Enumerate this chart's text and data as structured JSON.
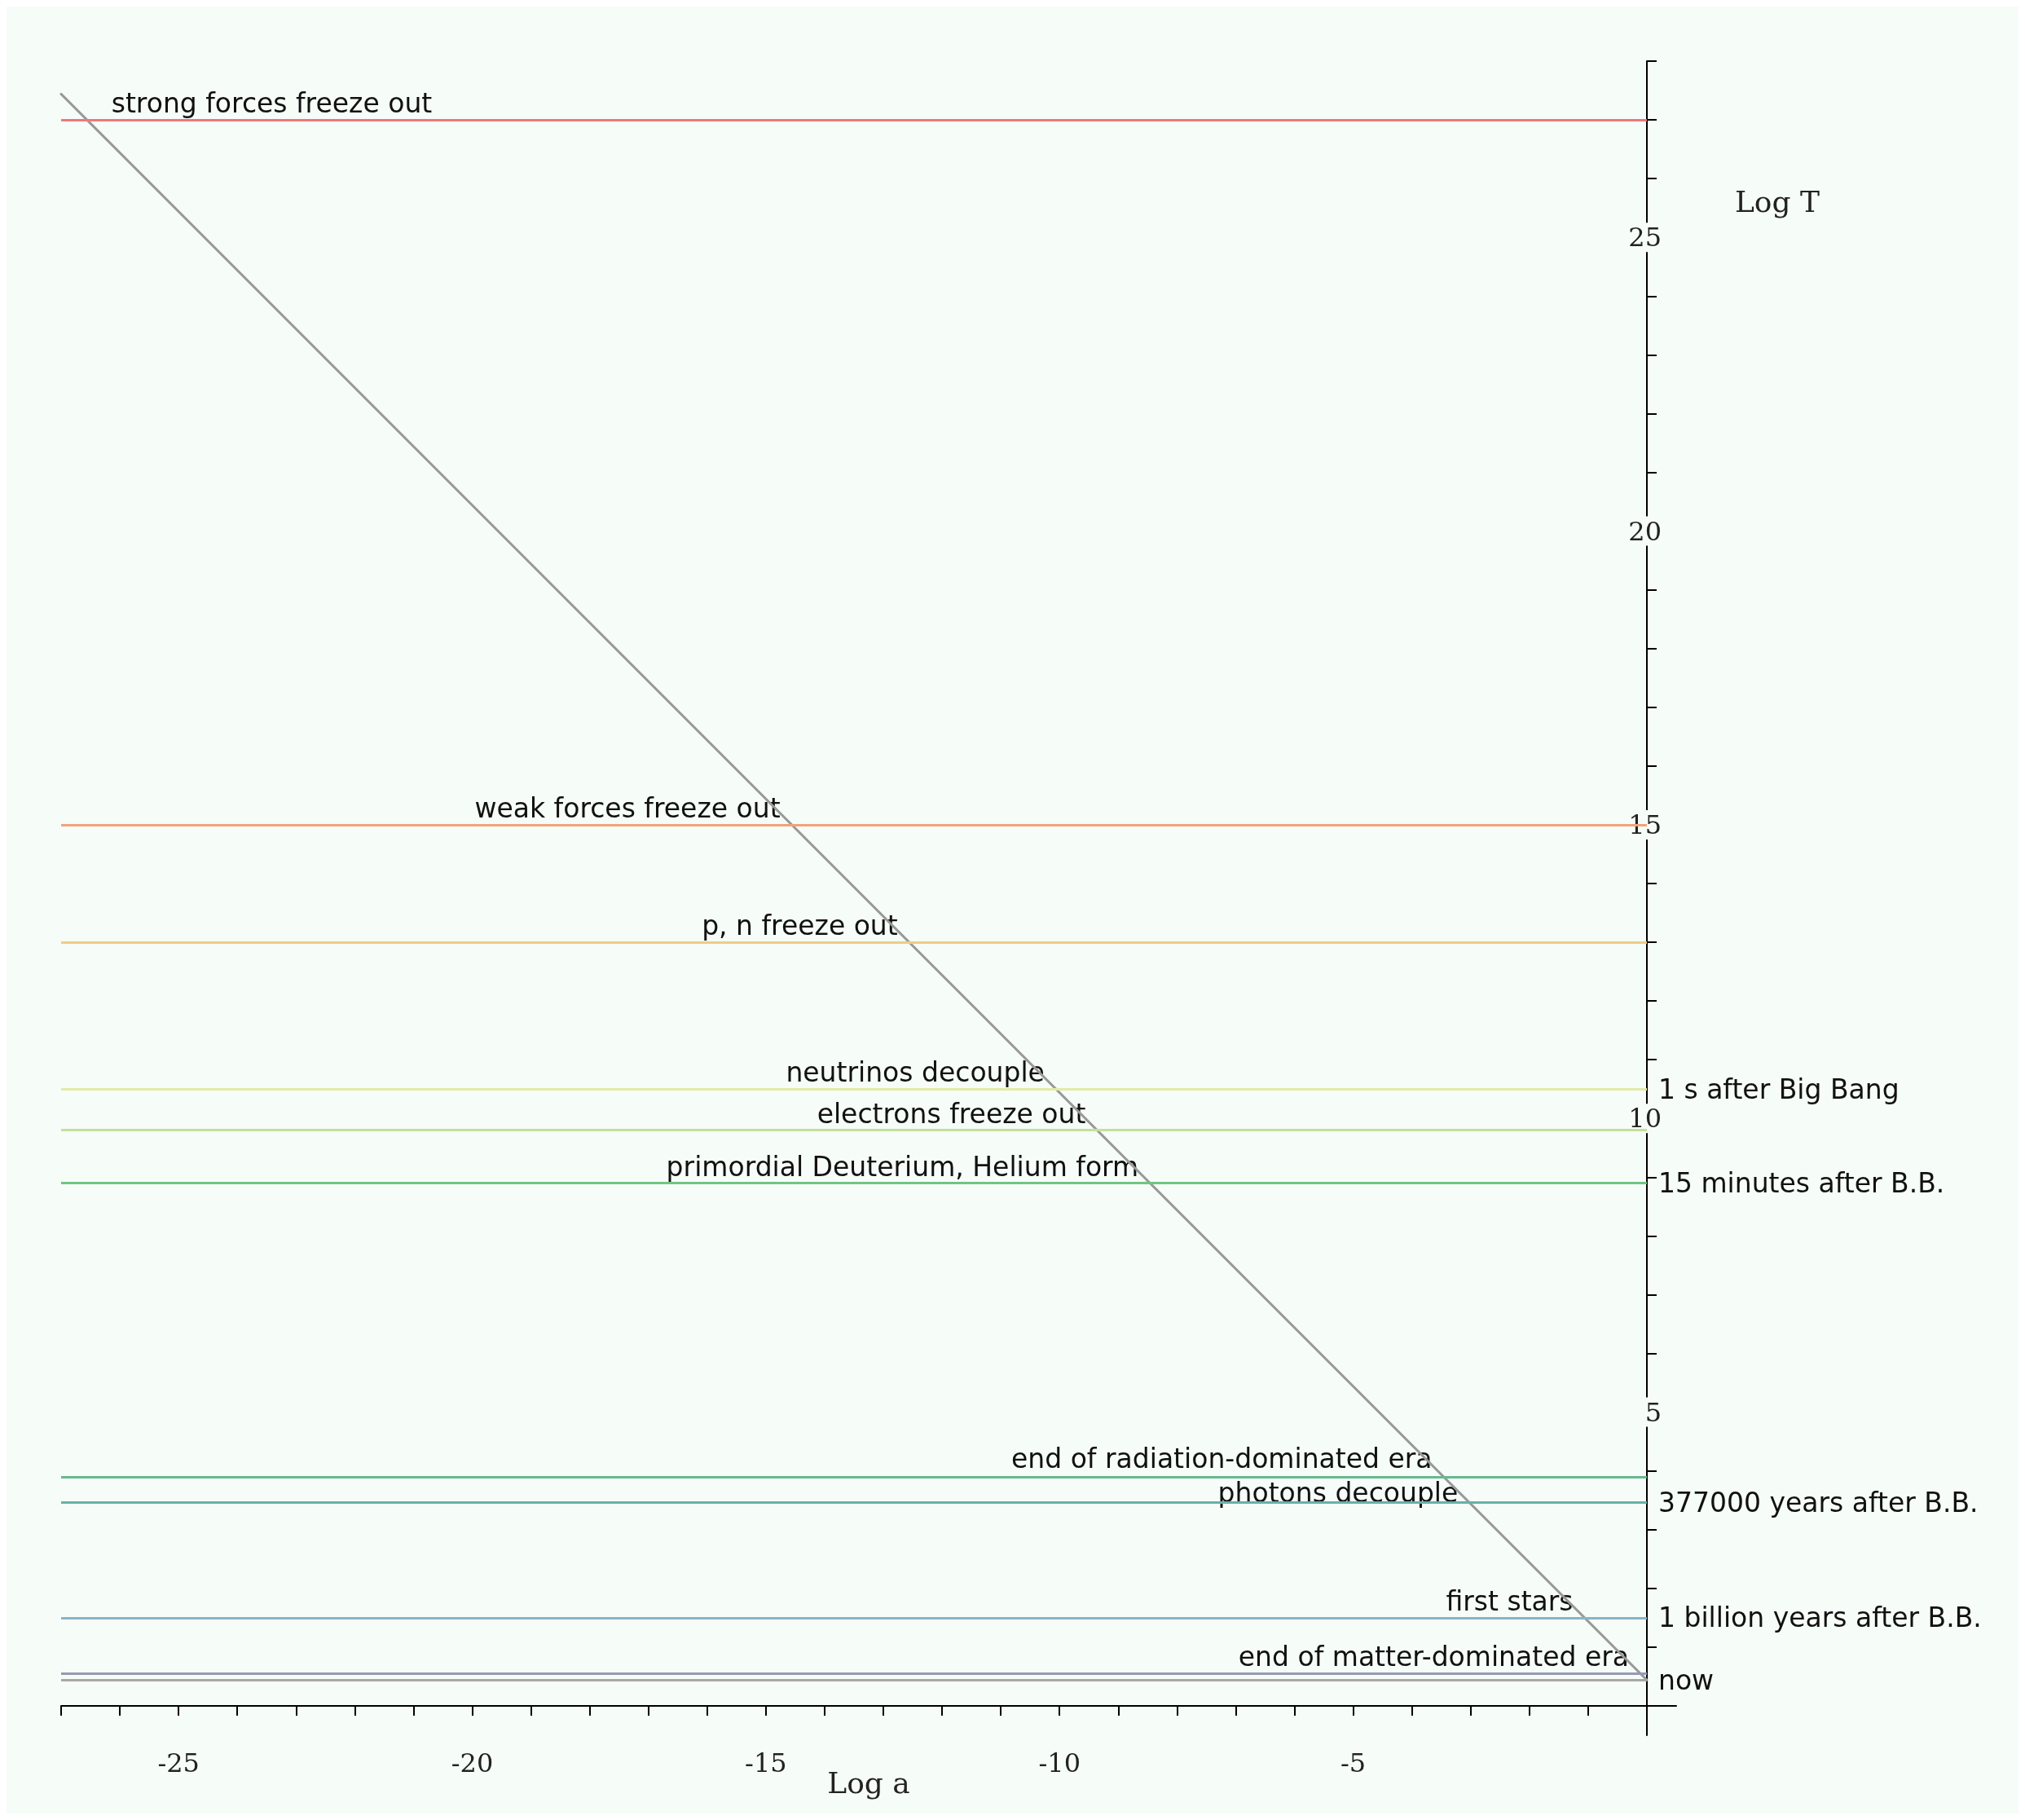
{
  "chart_data": {
    "type": "line",
    "xlabel": "Log a",
    "ylabel": "Log T",
    "grid": false,
    "marker": "none",
    "line_style": "solid",
    "x": [
      -27,
      0
    ],
    "series": [
      {
        "color": "#999999",
        "values": [
          27.44,
          0.44
        ]
      }
    ],
    "xlim": [
      -27,
      0.5
    ],
    "ylim": [
      -0.5,
      28
    ],
    "xticks": [
      {
        "value": -27,
        "label": null
      },
      {
        "value": -26,
        "label": null
      },
      -25,
      {
        "value": -24,
        "label": null
      },
      {
        "value": -23,
        "label": null
      },
      {
        "value": -22,
        "label": null
      },
      {
        "value": -21,
        "label": null
      },
      -20,
      {
        "value": -19,
        "label": null
      },
      {
        "value": -18,
        "label": null
      },
      {
        "value": -17,
        "label": null
      },
      {
        "value": -16,
        "label": null
      },
      -15,
      {
        "value": -14,
        "label": null
      },
      {
        "value": -13,
        "label": null
      },
      {
        "value": -12,
        "label": null
      },
      {
        "value": -11,
        "label": null
      },
      -10,
      {
        "value": -9,
        "label": null
      },
      {
        "value": -8,
        "label": null
      },
      {
        "value": -7,
        "label": null
      },
      {
        "value": -6,
        "label": null
      },
      -5,
      {
        "value": -4,
        "label": null
      },
      {
        "value": -3,
        "label": null
      },
      {
        "value": -2,
        "label": null
      },
      {
        "value": -1,
        "label": null
      }
    ],
    "yticks": [
      {
        "value": 1,
        "label": null
      },
      {
        "value": 2,
        "label": null
      },
      {
        "value": 3,
        "label": null
      },
      {
        "value": 4,
        "label": null
      },
      5,
      {
        "value": 6,
        "label": null
      },
      {
        "value": 7,
        "label": null
      },
      {
        "value": 8,
        "label": null
      },
      {
        "value": 9,
        "label": null
      },
      10,
      {
        "value": 11,
        "label": null
      },
      {
        "value": 12,
        "label": null
      },
      {
        "value": 13,
        "label": null
      },
      {
        "value": 14,
        "label": null
      },
      15,
      {
        "value": 16,
        "label": null
      },
      {
        "value": 17,
        "label": null
      },
      {
        "value": 18,
        "label": null
      },
      {
        "value": 19,
        "label": null
      },
      20,
      {
        "value": 21,
        "label": null
      },
      {
        "value": 22,
        "label": null
      },
      {
        "value": 23,
        "label": null
      },
      {
        "value": 24,
        "label": null
      },
      25,
      {
        "value": 26,
        "label": null
      },
      {
        "value": 27,
        "label": null
      },
      {
        "value": 28,
        "label": null
      }
    ],
    "ref_lines": [
      {
        "axis": "y",
        "value": 27,
        "label": "strong forces freeze out",
        "color": "#f07878"
      },
      {
        "axis": "y",
        "value": 15,
        "label": "weak forces freeze out",
        "color": "#f0a478"
      },
      {
        "axis": "y",
        "value": 13,
        "label": "p, n freeze out",
        "color": "#f0cc80"
      },
      {
        "axis": "y",
        "value": 10.5,
        "label": "neutrinos decouple",
        "color": "#e2eaa8"
      },
      {
        "axis": "y",
        "value": 9.8,
        "label": "electrons freeze out",
        "color": "#c4e098"
      },
      {
        "axis": "y",
        "value": 8.9,
        "label": "primordial Deuterium, Helium form",
        "color": "#70c680"
      },
      {
        "axis": "y",
        "value": 3.9,
        "label": "end of radiation-dominated era",
        "color": "#68b890"
      },
      {
        "axis": "y",
        "value": 3.46,
        "label": "photons decouple",
        "color": "#68b0a8"
      },
      {
        "axis": "y",
        "value": 1.5,
        "label": "first stars",
        "color": "#88b4c8"
      },
      {
        "axis": "y",
        "value": 0.55,
        "label": "end of matter-dominated era",
        "color": "#9898b4"
      },
      {
        "axis": "y",
        "value": 0.44,
        "label": null,
        "color": "#a8a8a8"
      }
    ],
    "annotations": [
      "1 s after Big Bang",
      "15 minutes after B.B.",
      "377000 years after B.B.",
      "1 billion years after B.B.",
      "now"
    ]
  }
}
